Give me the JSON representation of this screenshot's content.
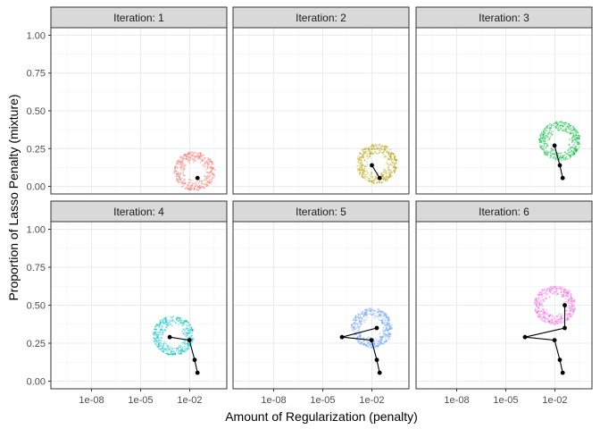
{
  "chart_data": {
    "type": "scatter",
    "layout": "faceted 2x3",
    "xlabel": "Amount of Regularization (penalty)",
    "ylabel": "Proportion of Lasso Penalty (mixture)",
    "x_scale": "log10",
    "x_ticks": [
      "1e-08",
      "1e-05",
      "1e-02"
    ],
    "y_ticks": [
      "0.00",
      "0.25",
      "0.50",
      "0.75",
      "1.00"
    ],
    "ylim": [
      -0.05,
      1.05
    ],
    "grid": true,
    "legend": "none",
    "panels": [
      {
        "title": "Iteration: 1",
        "color": "#F8766D",
        "cloud_center": {
          "log10_penalty": -1.7,
          "mixture": 0.1
        },
        "path": [
          {
            "penalty": 0.03,
            "mixture": 0.055
          }
        ]
      },
      {
        "title": "Iteration: 2",
        "color": "#B79F00",
        "cloud_center": {
          "log10_penalty": -1.7,
          "mixture": 0.15
        },
        "path": [
          {
            "penalty": 0.03,
            "mixture": 0.055
          },
          {
            "penalty": 0.01,
            "mixture": 0.14
          }
        ]
      },
      {
        "title": "Iteration: 3",
        "color": "#00BA38",
        "cloud_center": {
          "log10_penalty": -1.7,
          "mixture": 0.3
        },
        "path": [
          {
            "penalty": 0.03,
            "mixture": 0.055
          },
          {
            "penalty": 0.02,
            "mixture": 0.14
          },
          {
            "penalty": 0.0095,
            "mixture": 0.27
          }
        ]
      },
      {
        "title": "Iteration: 4",
        "color": "#00BFC4",
        "cloud_center": {
          "log10_penalty": -3.0,
          "mixture": 0.3
        },
        "path": [
          {
            "penalty": 0.03,
            "mixture": 0.055
          },
          {
            "penalty": 0.02,
            "mixture": 0.14
          },
          {
            "penalty": 0.0095,
            "mixture": 0.27
          },
          {
            "penalty": 0.0006,
            "mixture": 0.29
          }
        ]
      },
      {
        "title": "Iteration: 5",
        "color": "#619CFF",
        "cloud_center": {
          "log10_penalty": -2.0,
          "mixture": 0.35
        },
        "path": [
          {
            "penalty": 0.03,
            "mixture": 0.055
          },
          {
            "penalty": 0.02,
            "mixture": 0.14
          },
          {
            "penalty": 0.0095,
            "mixture": 0.27
          },
          {
            "penalty": 0.00015,
            "mixture": 0.29
          },
          {
            "penalty": 0.02,
            "mixture": 0.35
          }
        ]
      },
      {
        "title": "Iteration: 6",
        "color": "#F564E3",
        "cloud_center": {
          "log10_penalty": -2.0,
          "mixture": 0.5
        },
        "path": [
          {
            "penalty": 0.03,
            "mixture": 0.055
          },
          {
            "penalty": 0.02,
            "mixture": 0.14
          },
          {
            "penalty": 0.0095,
            "mixture": 0.27
          },
          {
            "penalty": 0.00015,
            "mixture": 0.29
          },
          {
            "penalty": 0.04,
            "mixture": 0.35
          },
          {
            "penalty": 0.04,
            "mixture": 0.5
          }
        ]
      }
    ]
  }
}
